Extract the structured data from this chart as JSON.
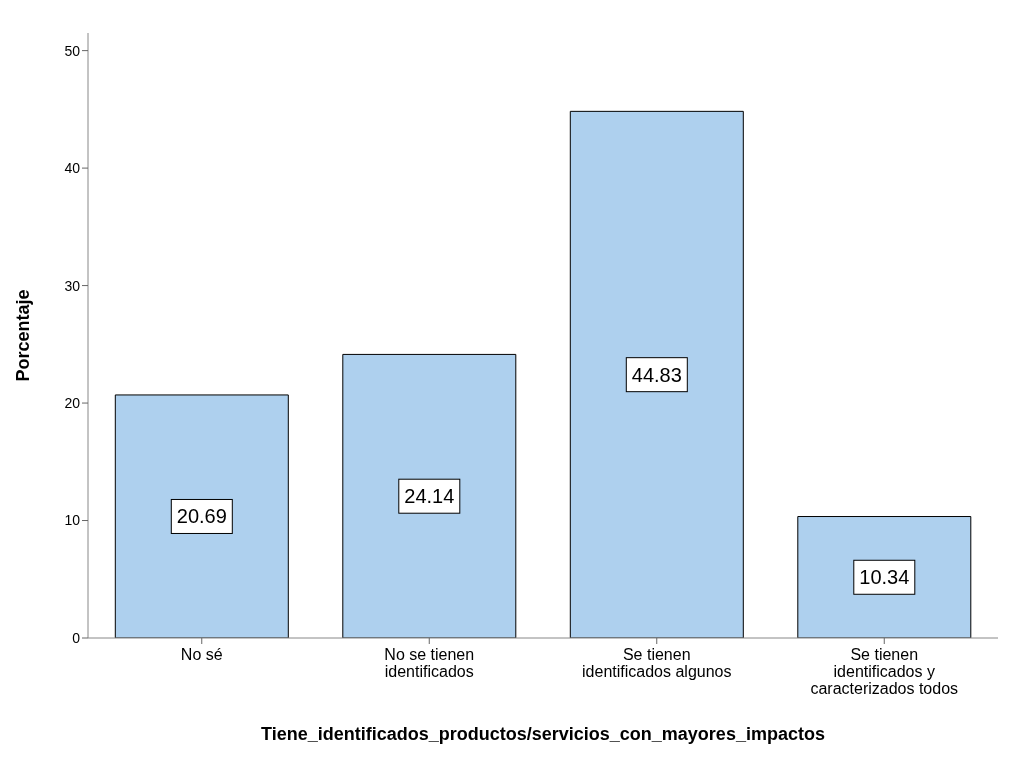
{
  "chart_data": {
    "type": "bar",
    "xlabel": "Tiene_identificados_productos/servicios_con_mayores_impactos",
    "ylabel": "Porcentaje",
    "categories": [
      "No sé",
      "No se tienen identificados",
      "Se tienen identificados algunos",
      "Se tienen identificados y caracterizados todos"
    ],
    "values": [
      20.69,
      24.14,
      44.83,
      10.34
    ],
    "color": "#aed0ee",
    "ylim": [
      0,
      51.5
    ],
    "yticks": [
      0,
      10,
      20,
      30,
      40,
      50
    ],
    "grid": false,
    "data_labels": true
  }
}
